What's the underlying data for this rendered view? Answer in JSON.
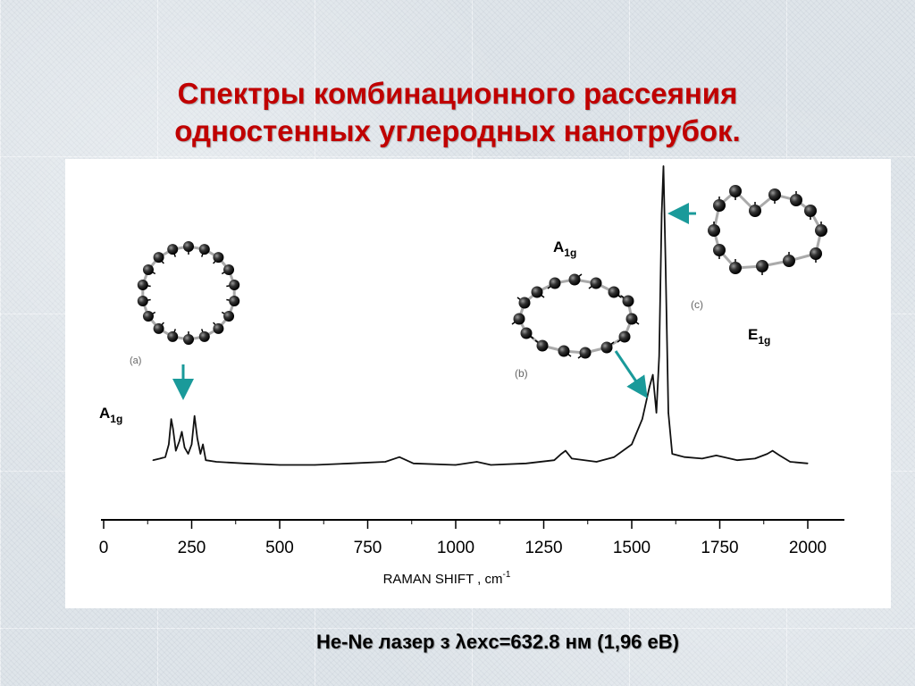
{
  "slide": {
    "title_line1": "Спектры комбинационного рассеяния",
    "title_line2": "одностенных углеродных нанотрубок.",
    "caption": "He-Ne лазер з λexc=632.8 нм (1,96 eB)",
    "colors": {
      "title": "#c00000",
      "arrow": "#1a9a9a",
      "text": "#000000"
    }
  },
  "chart_data": {
    "type": "line",
    "xlabel": "RAMAN SHIFT ,   cm",
    "xlabel_sup": "-1",
    "xlim": [
      0,
      2100
    ],
    "ylim": [
      0,
      1
    ],
    "x_ticks": [
      0,
      250,
      500,
      750,
      1000,
      1250,
      1500,
      1750,
      2000
    ],
    "y_axis_visible": false,
    "grid": false,
    "series": [
      {
        "points": [
          [
            140,
            0.07
          ],
          [
            160,
            0.075
          ],
          [
            175,
            0.08
          ],
          [
            185,
            0.12
          ],
          [
            192,
            0.2
          ],
          [
            197,
            0.17
          ],
          [
            205,
            0.1
          ],
          [
            215,
            0.13
          ],
          [
            222,
            0.16
          ],
          [
            230,
            0.11
          ],
          [
            240,
            0.09
          ],
          [
            250,
            0.12
          ],
          [
            258,
            0.21
          ],
          [
            266,
            0.14
          ],
          [
            275,
            0.09
          ],
          [
            282,
            0.12
          ],
          [
            290,
            0.07
          ],
          [
            320,
            0.065
          ],
          [
            400,
            0.06
          ],
          [
            500,
            0.055
          ],
          [
            600,
            0.055
          ],
          [
            700,
            0.06
          ],
          [
            800,
            0.065
          ],
          [
            840,
            0.08
          ],
          [
            880,
            0.06
          ],
          [
            1000,
            0.055
          ],
          [
            1060,
            0.065
          ],
          [
            1100,
            0.055
          ],
          [
            1200,
            0.06
          ],
          [
            1280,
            0.07
          ],
          [
            1300,
            0.09
          ],
          [
            1312,
            0.1
          ],
          [
            1330,
            0.075
          ],
          [
            1400,
            0.065
          ],
          [
            1450,
            0.08
          ],
          [
            1500,
            0.12
          ],
          [
            1530,
            0.2
          ],
          [
            1550,
            0.3
          ],
          [
            1560,
            0.34
          ],
          [
            1570,
            0.22
          ],
          [
            1578,
            0.4
          ],
          [
            1585,
            0.85
          ],
          [
            1590,
            1.0
          ],
          [
            1596,
            0.7
          ],
          [
            1604,
            0.22
          ],
          [
            1615,
            0.09
          ],
          [
            1650,
            0.08
          ],
          [
            1700,
            0.075
          ],
          [
            1740,
            0.085
          ],
          [
            1800,
            0.07
          ],
          [
            1850,
            0.075
          ],
          [
            1885,
            0.09
          ],
          [
            1900,
            0.1
          ],
          [
            1920,
            0.085
          ],
          [
            1950,
            0.065
          ],
          [
            2000,
            0.06
          ]
        ]
      }
    ],
    "annotations": [
      {
        "main": "A",
        "sub": "1g",
        "near_x": 200
      },
      {
        "main": "A",
        "sub": "1g",
        "near_x": 1560
      },
      {
        "main": "E",
        "sub": "1g",
        "near_x": 1590
      }
    ],
    "inset_labels": [
      "(a)",
      "(b)",
      "(c)"
    ]
  }
}
